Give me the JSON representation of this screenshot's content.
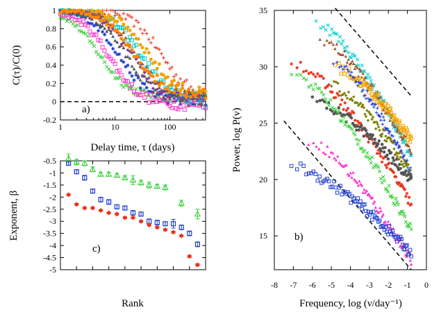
{
  "chart_data": [
    {
      "panel": "a)",
      "type": "scatter",
      "xlabel": "Delay time, τ (days)",
      "ylabel": "C(τ)/C(0)",
      "xscale": "log",
      "xlim": [
        1,
        450
      ],
      "ylim": [
        -0.2,
        1.0
      ],
      "xticks": [
        "1",
        "10",
        "100"
      ],
      "yticks": [
        "-0.2",
        "0",
        "0.2",
        "0.4",
        "0.6",
        "0.8",
        "1"
      ],
      "reference_line": {
        "y": 0,
        "style": "dashed"
      },
      "series": [
        {
          "color": "#e8341c",
          "marker": "plus",
          "tau_half": 70,
          "floor": 0.03
        },
        {
          "color": "#33cc33",
          "marker": "cross",
          "tau_half": 5,
          "floor": 0.05
        },
        {
          "color": "#1f3fcf",
          "marker": "star",
          "tau_half": 12,
          "floor": 0.0
        },
        {
          "color": "#ff33cc",
          "marker": "square",
          "tau_half": 8,
          "floor": -0.03
        },
        {
          "color": "#00cccc",
          "marker": "square",
          "tau_half": 30,
          "floor": 0.0
        },
        {
          "color": "#f5a300",
          "marker": "circle",
          "tau_half": 40,
          "floor": 0.06
        },
        {
          "color": "#a0522d",
          "marker": "triangle",
          "tau_half": 25,
          "floor": 0.02
        },
        {
          "color": "#555555",
          "marker": "triangle",
          "tau_half": 16,
          "floor": 0.01
        },
        {
          "color": "#7b3fa0",
          "marker": "diamond",
          "tau_half": 20,
          "floor": 0.0
        },
        {
          "color": "#ff8800",
          "marker": "circle",
          "tau_half": 22,
          "floor": 0.08
        }
      ]
    },
    {
      "panel": "b)",
      "type": "scatter",
      "xlabel": "Frequency, log (ν/day⁻¹)",
      "ylabel": "Power, log P(ν)",
      "xlim": [
        -8,
        0
      ],
      "ylim": [
        12,
        35
      ],
      "xticks": [
        "-8",
        "-7",
        "-6",
        "-5",
        "-4",
        "-3",
        "-2",
        "-1",
        "0"
      ],
      "yticks": [
        "15",
        "20",
        "25",
        "30",
        "35"
      ],
      "guide_lines": [
        {
          "style": "dashed",
          "from": [
            -7.5,
            25.2
          ],
          "to": [
            -0.8,
            12.0
          ]
        },
        {
          "style": "dashed",
          "from": [
            -4.8,
            35.2
          ],
          "to": [
            -0.8,
            27.4
          ]
        }
      ],
      "series": [
        {
          "color": "#00cccc",
          "x_start": -5.8,
          "y_start": 34.0,
          "y_end": 22.0
        },
        {
          "color": "#a0522d",
          "x_start": -5.6,
          "y_start": 32.5,
          "y_end": 22.5
        },
        {
          "color": "#f5a300",
          "x_start": -4.8,
          "y_start": 30.0,
          "y_end": 23.5
        },
        {
          "color": "#1f3fcf",
          "x_start": -4.9,
          "y_start": 30.5,
          "y_end": 20.5
        },
        {
          "color": "#808000",
          "x_start": -5.2,
          "y_start": 28.5,
          "y_end": 20.5
        },
        {
          "color": "#e8341c",
          "x_start": -7.1,
          "y_start": 30.5,
          "y_end": 17.8
        },
        {
          "color": "#555555",
          "x_start": -6.0,
          "y_start": 27.0,
          "y_end": 20.0
        },
        {
          "color": "#33cc33",
          "x_start": -7.1,
          "y_start": 29.5,
          "y_end": 15.5
        },
        {
          "color": "#ff33cc",
          "x_start": -6.2,
          "y_start": 23.5,
          "y_end": 12.8
        },
        {
          "color": "#1f3fcf",
          "x_start": -7.1,
          "y_start": 21.2,
          "y_end": 13.5
        }
      ]
    },
    {
      "panel": "c)",
      "type": "scatter",
      "xlabel": "Rank",
      "ylabel": "Exponent, β",
      "xlim": [
        0,
        18
      ],
      "ylim": [
        -5,
        -0.5
      ],
      "yticks": [
        "-0.5",
        "-1",
        "-1.5",
        "-2",
        "-2.5",
        "-3",
        "-3.5",
        "-4",
        "-4.5",
        "-5"
      ],
      "xticks": [
        "0",
        "2",
        "4",
        "6",
        "8",
        "10",
        "12",
        "14",
        "16"
      ],
      "series": [
        {
          "color": "#33cc33",
          "marker": "triangle",
          "x": [
            1,
            2,
            3,
            4,
            5,
            6,
            7,
            8,
            9,
            10,
            11,
            12,
            13,
            15,
            17
          ],
          "y": [
            -0.4,
            -0.55,
            -0.6,
            -0.85,
            -1.05,
            -1.05,
            -1.1,
            -1.2,
            -1.3,
            -1.4,
            -1.5,
            -1.55,
            -1.6,
            -2.25,
            -2.7
          ],
          "err": [
            0.18,
            0.12,
            0.1,
            0.1,
            0.08,
            0.08,
            0.08,
            0.08,
            0.18,
            0.1,
            0.12,
            0.08,
            0.1,
            0.12,
            0.2
          ]
        },
        {
          "color": "#1f3fcf",
          "marker": "square",
          "x": [
            1,
            2,
            3,
            4,
            5,
            6,
            7,
            8,
            9,
            10,
            11,
            12,
            13,
            14,
            15,
            16,
            17
          ],
          "y": [
            -0.6,
            -0.95,
            -1.2,
            -1.75,
            -2.1,
            -2.2,
            -2.4,
            -2.45,
            -2.65,
            -2.7,
            -3.0,
            -3.05,
            -3.1,
            -3.1,
            -3.25,
            -3.5,
            -3.95
          ],
          "err": [
            0.08,
            0.08,
            0.1,
            0.08,
            0.1,
            0.1,
            0.08,
            0.08,
            0.1,
            0.08,
            0.1,
            0.1,
            0.08,
            0.18,
            0.1,
            0.1,
            0.1
          ]
        },
        {
          "color": "#e8341c",
          "marker": "diamond",
          "x": [
            1,
            2,
            3,
            4,
            5,
            6,
            7,
            8,
            9,
            10,
            11,
            12,
            13,
            14,
            15,
            16,
            17
          ],
          "y": [
            -1.9,
            -2.3,
            -2.45,
            -2.45,
            -2.55,
            -2.65,
            -2.7,
            -2.85,
            -2.85,
            -3.0,
            -3.15,
            -3.25,
            -3.35,
            -3.45,
            -3.6,
            -4.45,
            -4.8
          ],
          "err": [
            0.04,
            0.04,
            0.04,
            0.04,
            0.04,
            0.04,
            0.04,
            0.04,
            0.04,
            0.04,
            0.04,
            0.04,
            0.04,
            0.04,
            0.04,
            0.05,
            0.05
          ]
        }
      ]
    }
  ]
}
